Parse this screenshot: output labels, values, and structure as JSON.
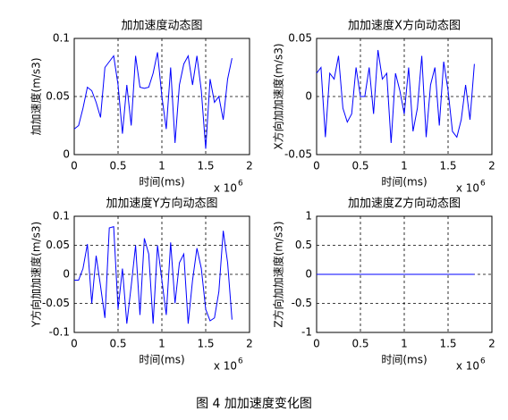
{
  "chart_data": [
    {
      "type": "line",
      "title": "加加速度动态图",
      "x_label": "时间(ms)",
      "y_label": "加加速度(m/s3)",
      "x_multiplier": "x 10",
      "x_exponent": "6",
      "x": [
        0,
        50000,
        100000,
        150000,
        200000,
        250000,
        300000,
        350000,
        400000,
        450000,
        500000,
        550000,
        600000,
        650000,
        700000,
        750000,
        800000,
        850000,
        900000,
        950000,
        1000000,
        1050000,
        1100000,
        1150000,
        1200000,
        1250000,
        1300000,
        1350000,
        1400000,
        1450000,
        1500000,
        1550000,
        1600000,
        1650000,
        1700000,
        1750000,
        1800000
      ],
      "series": [
        {
          "color": "#0000ff",
          "values": [
            0.022,
            0.025,
            0.04,
            0.058,
            0.055,
            0.045,
            0.032,
            0.075,
            0.08,
            0.085,
            0.06,
            0.018,
            0.06,
            0.025,
            0.085,
            0.058,
            0.057,
            0.058,
            0.07,
            0.088,
            0.05,
            0.022,
            0.075,
            0.01,
            0.06,
            0.078,
            0.085,
            0.06,
            0.085,
            0.055,
            0.005,
            0.065,
            0.045,
            0.05,
            0.03,
            0.065,
            0.083
          ]
        }
      ],
      "xlim": [
        0,
        2000000
      ],
      "xticks": [
        0,
        {
          "value": 500000,
          "label": "0.5"
        },
        {
          "value": 1000000,
          "label": "1"
        },
        {
          "value": 1500000,
          "label": "1.5"
        },
        {
          "value": 2000000,
          "label": "2"
        }
      ],
      "ylim": [
        0,
        0.1
      ],
      "yticks": [
        0,
        0.05,
        0.1
      ],
      "grid": true
    },
    {
      "type": "line",
      "title": "加加速度X方向动态图",
      "x_label": "时间(ms)",
      "y_label": "X方向加加速度(m/s3)",
      "x_multiplier": "x 10",
      "x_exponent": "6",
      "x": [
        0,
        50000,
        100000,
        150000,
        200000,
        250000,
        300000,
        350000,
        400000,
        450000,
        500000,
        550000,
        600000,
        650000,
        700000,
        750000,
        800000,
        850000,
        900000,
        950000,
        1000000,
        1050000,
        1100000,
        1150000,
        1200000,
        1250000,
        1300000,
        1350000,
        1400000,
        1450000,
        1500000,
        1550000,
        1600000,
        1650000,
        1700000,
        1750000,
        1800000
      ],
      "series": [
        {
          "color": "#0000ff",
          "values": [
            0.02,
            0.025,
            -0.035,
            0.02,
            0.015,
            0.035,
            -0.01,
            -0.022,
            -0.015,
            0.025,
            0,
            0,
            0.025,
            -0.015,
            0.04,
            0.015,
            0.02,
            -0.04,
            0.02,
            0.005,
            -0.015,
            0.025,
            -0.03,
            -0.01,
            0.035,
            -0.035,
            0.01,
            0.025,
            -0.025,
            0.03,
            0.005,
            -0.03,
            -0.035,
            -0.02,
            0.01,
            -0.02,
            0.028
          ]
        }
      ],
      "xlim": [
        0,
        2000000
      ],
      "xticks": [
        0,
        {
          "value": 500000,
          "label": "0.5"
        },
        {
          "value": 1000000,
          "label": "1"
        },
        {
          "value": 1500000,
          "label": "1.5"
        },
        {
          "value": 2000000,
          "label": "2"
        }
      ],
      "ylim": [
        -0.05,
        0.05
      ],
      "yticks": [
        -0.05,
        0,
        0.05
      ],
      "grid": true
    },
    {
      "type": "line",
      "title": "加加速度Y方向动态图",
      "x_label": "时间(ms)",
      "y_label": "Y方向加加速度(m/s3)",
      "x_multiplier": "x 10",
      "x_exponent": "6",
      "x": [
        0,
        50000,
        100000,
        150000,
        200000,
        250000,
        300000,
        350000,
        400000,
        450000,
        500000,
        550000,
        600000,
        650000,
        700000,
        750000,
        800000,
        850000,
        900000,
        950000,
        1000000,
        1050000,
        1100000,
        1150000,
        1200000,
        1250000,
        1300000,
        1350000,
        1400000,
        1450000,
        1500000,
        1550000,
        1600000,
        1650000,
        1700000,
        1750000,
        1800000
      ],
      "series": [
        {
          "color": "#0000ff",
          "values": [
            -0.01,
            -0.01,
            0.01,
            0.052,
            -0.05,
            0.032,
            -0.02,
            -0.075,
            0.08,
            0.082,
            -0.06,
            0.01,
            -0.085,
            -0.02,
            0.05,
            -0.07,
            0.062,
            0.035,
            -0.085,
            0.05,
            -0.01,
            -0.07,
            0.055,
            -0.05,
            0.02,
            0.035,
            -0.085,
            -0.01,
            0.045,
            0.01,
            -0.06,
            -0.08,
            -0.075,
            -0.03,
            0.075,
            0.02,
            -0.078
          ]
        }
      ],
      "xlim": [
        0,
        2000000
      ],
      "xticks": [
        0,
        {
          "value": 500000,
          "label": "0.5"
        },
        {
          "value": 1000000,
          "label": "1"
        },
        {
          "value": 1500000,
          "label": "1.5"
        },
        {
          "value": 2000000,
          "label": "2"
        }
      ],
      "ylim": [
        -0.1,
        0.1
      ],
      "yticks": [
        -0.1,
        -0.05,
        0,
        0.05,
        0.1
      ],
      "grid": true
    },
    {
      "type": "line",
      "title": "加加速度Z方向动态图",
      "x_label": "时间(ms)",
      "y_label": "Z方向加加速度(m/s3)",
      "x_multiplier": "x 10",
      "x_exponent": "6",
      "x": [
        0,
        50000,
        100000,
        150000,
        200000,
        250000,
        300000,
        350000,
        400000,
        450000,
        500000,
        550000,
        600000,
        650000,
        700000,
        750000,
        800000,
        850000,
        900000,
        950000,
        1000000,
        1050000,
        1100000,
        1150000,
        1200000,
        1250000,
        1300000,
        1350000,
        1400000,
        1450000,
        1500000,
        1550000,
        1600000,
        1650000,
        1700000,
        1750000,
        1800000
      ],
      "series": [
        {
          "color": "#0000ff",
          "values": [
            0,
            0,
            0,
            0,
            0,
            0,
            0,
            0,
            0,
            0,
            0,
            0,
            0,
            0,
            0,
            0,
            0,
            0,
            0,
            0,
            0,
            0,
            0,
            0,
            0,
            0,
            0,
            0,
            0,
            0,
            0,
            0,
            0,
            0,
            0,
            0,
            0
          ]
        }
      ],
      "xlim": [
        0,
        2000000
      ],
      "xticks": [
        0,
        {
          "value": 500000,
          "label": "0.5"
        },
        {
          "value": 1000000,
          "label": "1"
        },
        {
          "value": 1500000,
          "label": "1.5"
        },
        {
          "value": 2000000,
          "label": "2"
        }
      ],
      "ylim": [
        -1,
        1
      ],
      "yticks": [
        -1,
        {
          "value": -0.5,
          "label": "-0.5"
        },
        0,
        0.5,
        1
      ],
      "grid": true
    }
  ],
  "caption": "图 4  加加速度变化图"
}
